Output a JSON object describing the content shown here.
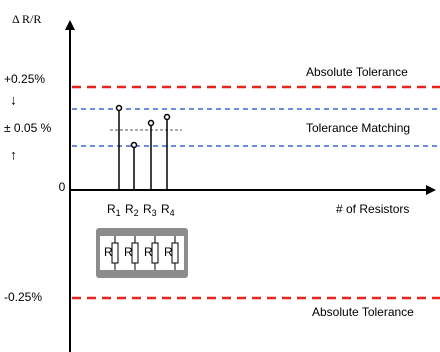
{
  "axis": {
    "y_label": "Δ R/R",
    "x_label": "# of Resistors",
    "zero": "0"
  },
  "levels": {
    "upper": "+0.25%",
    "matching": "± 0.05 %",
    "lower": "-0.25%"
  },
  "arrows": {
    "down": "↓",
    "up": "↑"
  },
  "bands": {
    "absolute_upper": "Absolute Tolerance",
    "matching": "Tolerance Matching",
    "absolute_lower": "Absolute Tolerance"
  },
  "resistors": [
    {
      "name": "R",
      "index": "1"
    },
    {
      "name": "R",
      "index": "2"
    },
    {
      "name": "R",
      "index": "3"
    },
    {
      "name": "R",
      "index": "4"
    }
  ],
  "network_label": "R"
}
